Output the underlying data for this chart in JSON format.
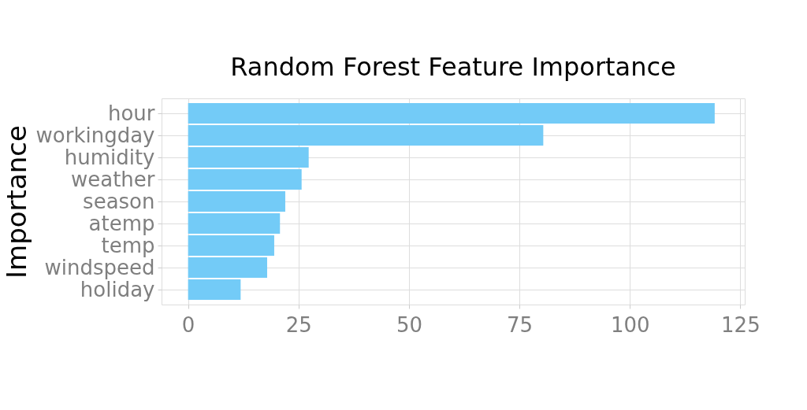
{
  "chart_data": {
    "type": "bar",
    "orientation": "horizontal",
    "title": "Random Forest Feature Importance",
    "ylabel": "Importance",
    "categories": [
      "hour",
      "workingday",
      "humidity",
      "weather",
      "season",
      "atemp",
      "temp",
      "windspeed",
      "holiday"
    ],
    "values": [
      119.2,
      80.4,
      27.3,
      25.7,
      22.0,
      20.8,
      19.5,
      17.9,
      11.9
    ],
    "color": "#73cbf7",
    "xlim": [
      -6,
      126
    ],
    "xticks": [
      0,
      25,
      50,
      75,
      100,
      125
    ],
    "grid": true
  }
}
